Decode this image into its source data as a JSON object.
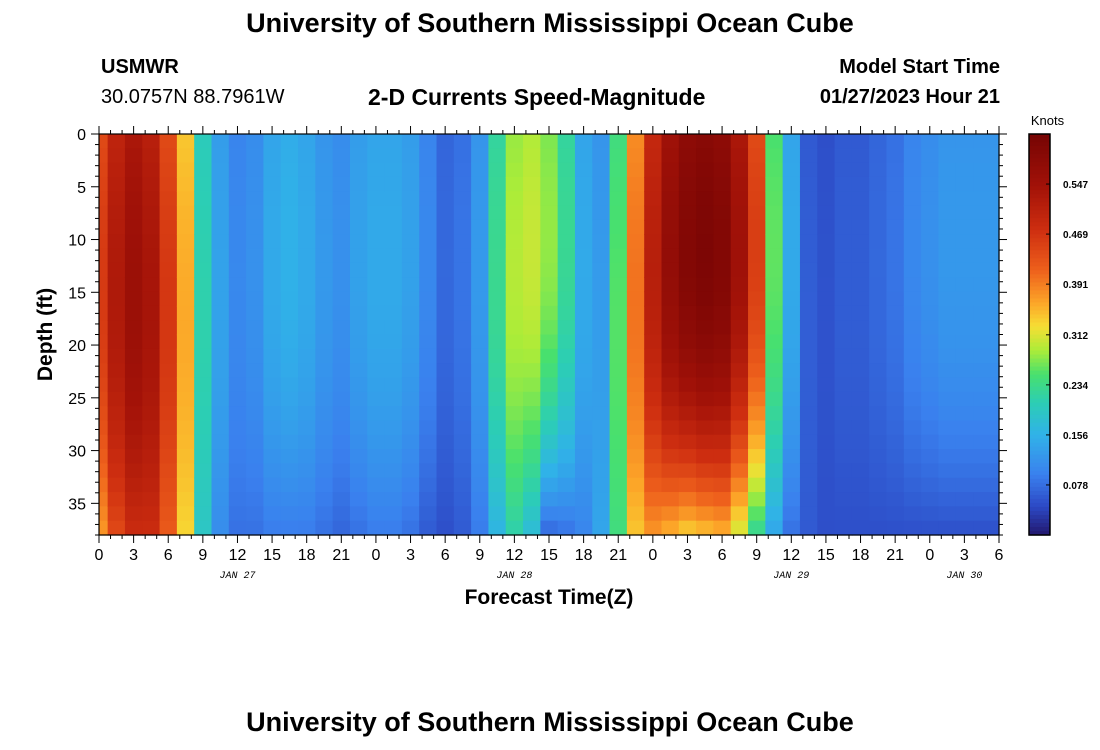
{
  "header": {
    "title": "University of Southern Mississippi Ocean Cube",
    "station": "USMWR",
    "coords": "30.0757N  88.7961W",
    "plot_title": "2-D Currents Speed-Magnitude",
    "model_start_label": "Model Start Time",
    "model_start_value": "01/27/2023 Hour 21"
  },
  "footer": {
    "title": "University of Southern Mississippi Ocean Cube"
  },
  "chart_data": {
    "type": "heatmap",
    "xlabel": "Forecast Time(Z)",
    "ylabel": "Depth (ft)",
    "x_tick_labels": [
      "0",
      "3",
      "6",
      "9",
      "12",
      "15",
      "18",
      "21",
      "0",
      "3",
      "6",
      "9",
      "12",
      "15",
      "18",
      "21",
      "0",
      "3",
      "6",
      "9",
      "12",
      "15",
      "18",
      "21",
      "0",
      "3",
      "6"
    ],
    "date_labels": [
      {
        "label": "JAN 27",
        "hour": 12
      },
      {
        "label": "JAN 28",
        "hour": 36
      },
      {
        "label": "JAN 29",
        "hour": 60
      },
      {
        "label": "JAN 30",
        "hour": 75
      }
    ],
    "x_range_hours": [
      0,
      78
    ],
    "ylim": [
      0,
      38
    ],
    "y_inverted": true,
    "y_ticks": [
      0,
      5,
      10,
      15,
      20,
      25,
      30,
      35
    ],
    "colorbar": {
      "title": "Knots",
      "range": [
        0,
        0.625
      ],
      "tick_labels": [
        "0.547",
        "0.469",
        "0.391",
        "0.312",
        "0.234",
        "0.156",
        "0.078"
      ]
    },
    "time_hours": [
      0,
      1.5,
      3,
      4.5,
      6,
      7.5,
      9,
      10.5,
      12,
      13.5,
      15,
      16.5,
      18,
      19.5,
      21,
      22.5,
      24,
      25.5,
      27,
      28.5,
      30,
      31.5,
      33,
      34.5,
      36,
      37.5,
      39,
      40.5,
      42,
      43.5,
      45,
      46.5,
      48,
      49.5,
      51,
      52.5,
      54,
      55.5,
      57,
      58.5,
      60,
      61.5,
      63,
      64.5,
      66,
      67.5,
      69,
      70.5,
      72,
      73.5,
      75,
      76.5,
      78
    ],
    "surface_speed_knots": [
      0.44,
      0.5,
      0.53,
      0.51,
      0.44,
      0.34,
      0.2,
      0.13,
      0.1,
      0.11,
      0.14,
      0.15,
      0.14,
      0.12,
      0.11,
      0.13,
      0.14,
      0.14,
      0.13,
      0.1,
      0.07,
      0.08,
      0.12,
      0.22,
      0.28,
      0.29,
      0.27,
      0.22,
      0.14,
      0.12,
      0.24,
      0.38,
      0.49,
      0.55,
      0.58,
      0.59,
      0.58,
      0.53,
      0.44,
      0.25,
      0.14,
      0.06,
      0.05,
      0.06,
      0.06,
      0.07,
      0.08,
      0.1,
      0.11,
      0.12,
      0.12,
      0.12,
      0.12
    ],
    "bottom_speed_knots": [
      0.37,
      0.44,
      0.48,
      0.48,
      0.42,
      0.33,
      0.19,
      0.11,
      0.08,
      0.08,
      0.09,
      0.09,
      0.09,
      0.08,
      0.07,
      0.08,
      0.09,
      0.09,
      0.08,
      0.06,
      0.05,
      0.06,
      0.09,
      0.16,
      0.21,
      0.17,
      0.07,
      0.08,
      0.1,
      0.14,
      0.24,
      0.34,
      0.37,
      0.35,
      0.33,
      0.34,
      0.35,
      0.3,
      0.22,
      0.14,
      0.08,
      0.06,
      0.05,
      0.05,
      0.05,
      0.05,
      0.05,
      0.05,
      0.05,
      0.05,
      0.05,
      0.05,
      0.05
    ]
  }
}
